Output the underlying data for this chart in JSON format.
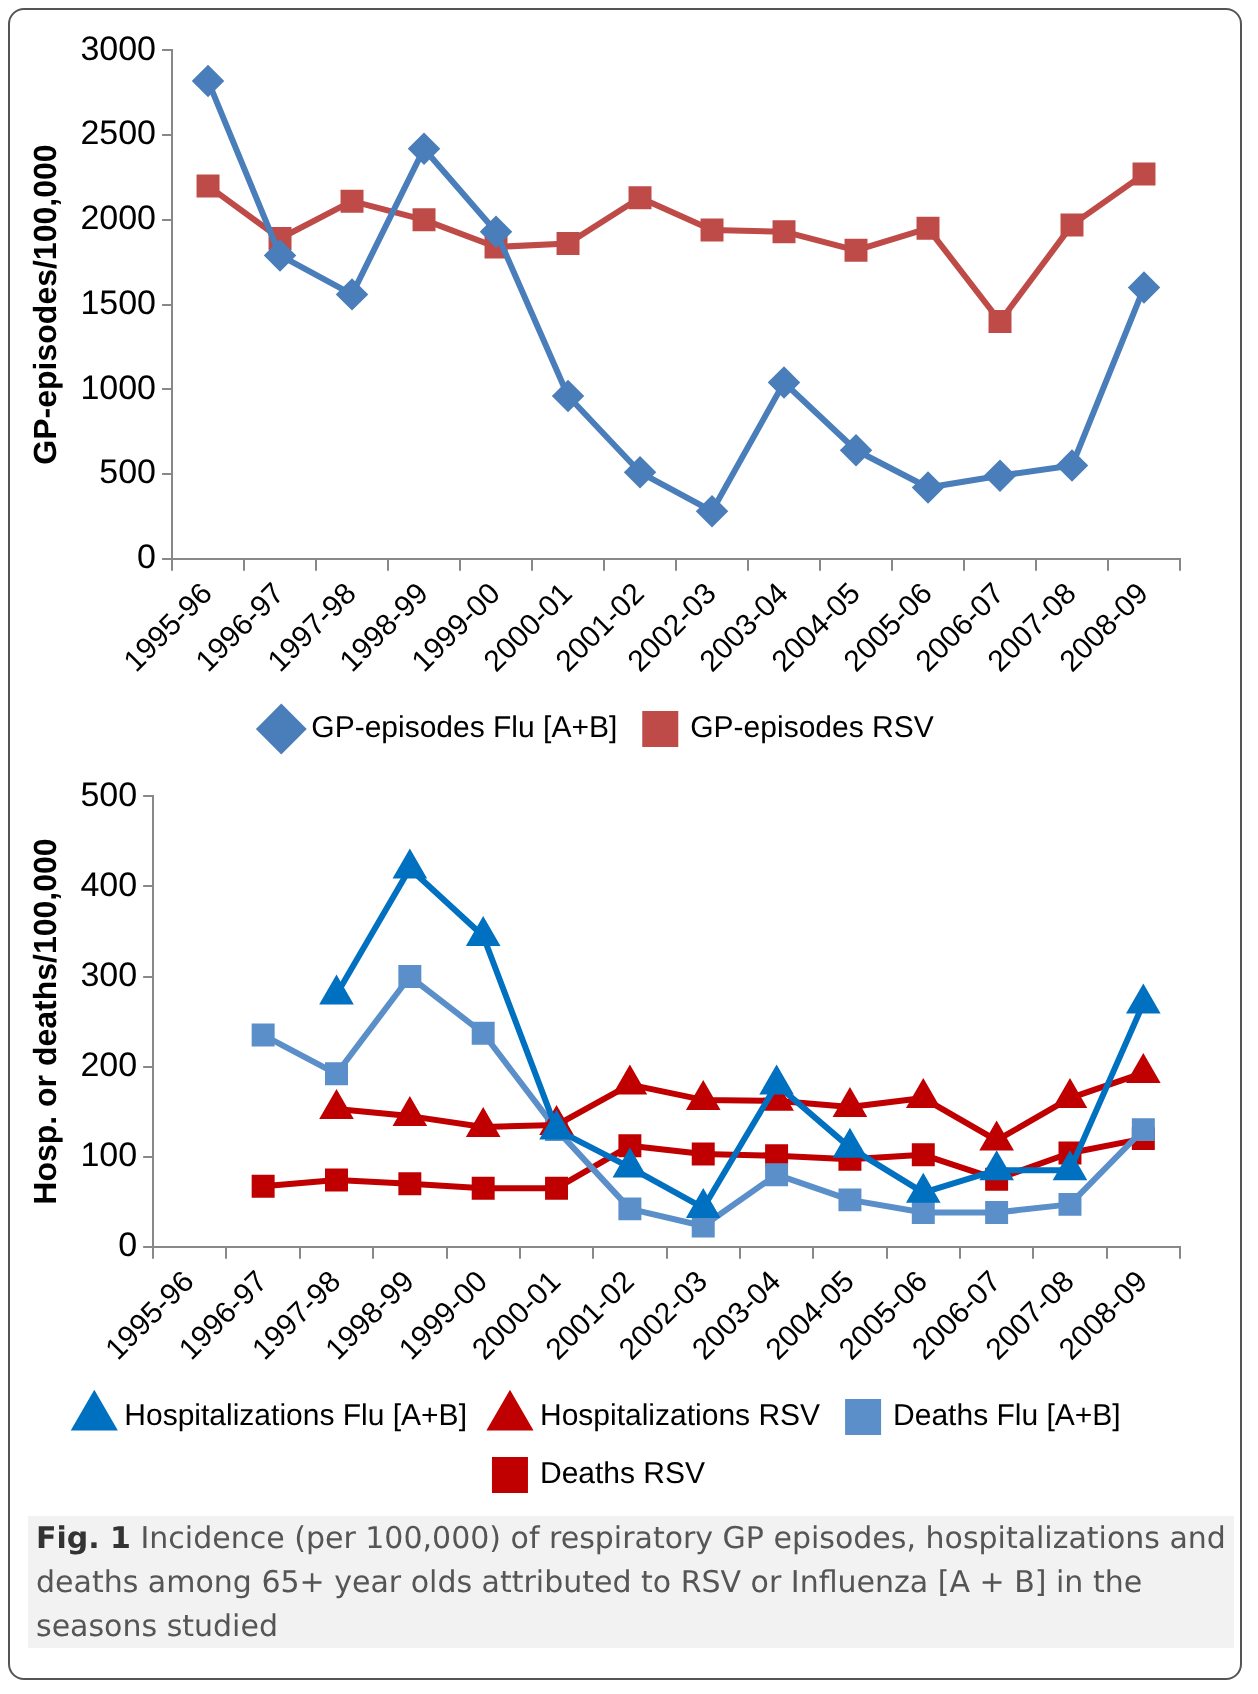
{
  "chart_data": [
    {
      "type": "line",
      "ylabel": "GP-episodes/100,000",
      "categories": [
        "1995-96",
        "1996-97",
        "1997-98",
        "1998-99",
        "1999-00",
        "2000-01",
        "2001-02",
        "2002-03",
        "2003-04",
        "2004-05",
        "2005-06",
        "2006-07",
        "2007-08",
        "2008-09"
      ],
      "ylim": [
        0,
        3000
      ],
      "yticks": [
        0,
        500,
        1000,
        1500,
        2000,
        2500,
        3000
      ],
      "legend": "bottom",
      "series": [
        {
          "name": "GP-episodes Flu [A+B]",
          "color": "#4a7ebb",
          "marker": "diamond",
          "values": [
            2820,
            1790,
            1560,
            2420,
            1930,
            960,
            510,
            280,
            1040,
            640,
            420,
            490,
            550,
            1600
          ]
        },
        {
          "name": "GP-episodes RSV",
          "color": "#be4b48",
          "marker": "square",
          "values": [
            2200,
            1890,
            2110,
            2000,
            1840,
            1860,
            2130,
            1940,
            1930,
            1820,
            1950,
            1400,
            1970,
            2270
          ]
        }
      ]
    },
    {
      "type": "line",
      "ylabel": "Hosp. or deaths/100,000",
      "categories": [
        "1995-96",
        "1996-97",
        "1997-98",
        "1998-99",
        "1999-00",
        "2000-01",
        "2001-02",
        "2002-03",
        "2003-04",
        "2004-05",
        "2005-06",
        "2006-07",
        "2007-08",
        "2008-09"
      ],
      "ylim": [
        0,
        500
      ],
      "yticks": [
        0,
        100,
        200,
        300,
        400,
        500
      ],
      "legend": "bottom",
      "series": [
        {
          "name": "Hospitalizations Flu [A+B]",
          "color": "#0070c0",
          "marker": "triangle",
          "values": [
            null,
            null,
            280,
            420,
            345,
            130,
            88,
            43,
            180,
            110,
            60,
            85,
            85,
            270
          ]
        },
        {
          "name": "Hospitalizations RSV",
          "color": "#c00000",
          "marker": "triangle",
          "values": [
            null,
            null,
            153,
            145,
            133,
            135,
            180,
            163,
            162,
            155,
            165,
            118,
            165,
            193
          ]
        },
        {
          "name": "Deaths Flu [A+B]",
          "color": "#5b8fc9",
          "marker": "square",
          "values": [
            null,
            235,
            192,
            300,
            237,
            130,
            42,
            23,
            80,
            52,
            38,
            38,
            47,
            130
          ]
        },
        {
          "name": "Deaths RSV",
          "color": "#c00000",
          "marker": "square",
          "values": [
            null,
            67,
            74,
            70,
            65,
            65,
            112,
            103,
            101,
            97,
            102,
            75,
            104,
            120
          ]
        }
      ],
      "annotations": [
        "Fig. 1",
        "Incidence (per 100,000) of respiratory GP episodes, hospitalizations and deaths among 65+ year olds attributed to RSV or Influenza [A + B] in the seasons studied"
      ]
    }
  ]
}
